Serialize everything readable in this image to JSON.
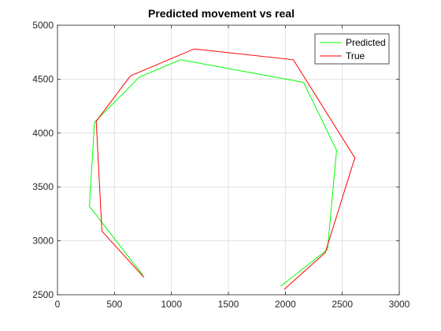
{
  "chart_data": {
    "type": "line",
    "title": "Predicted movement vs real",
    "xlabel": "",
    "ylabel": "",
    "xlim": [
      0,
      3000
    ],
    "ylim": [
      2500,
      5000
    ],
    "xticks": [
      "0",
      "500",
      "1000",
      "1500",
      "2000",
      "2500",
      "3000"
    ],
    "yticks": [
      "2500",
      "3000",
      "3500",
      "4000",
      "4500",
      "5000"
    ],
    "grid": true,
    "legend_position": "top-right",
    "series": [
      {
        "name": "Predicted",
        "color": "#00ff00",
        "points": [
          [
            750,
            2680
          ],
          [
            280,
            3320
          ],
          [
            325,
            4100
          ],
          [
            720,
            4520
          ],
          [
            1080,
            4680
          ],
          [
            2160,
            4470
          ],
          [
            2450,
            3840
          ],
          [
            2370,
            2920
          ],
          [
            1960,
            2580
          ]
        ]
      },
      {
        "name": "True",
        "color": "#ff0000",
        "points": [
          [
            760,
            2660
          ],
          [
            390,
            3090
          ],
          [
            340,
            4110
          ],
          [
            640,
            4530
          ],
          [
            1200,
            4780
          ],
          [
            2070,
            4680
          ],
          [
            2610,
            3770
          ],
          [
            2350,
            2890
          ],
          [
            1990,
            2550
          ]
        ]
      }
    ]
  }
}
